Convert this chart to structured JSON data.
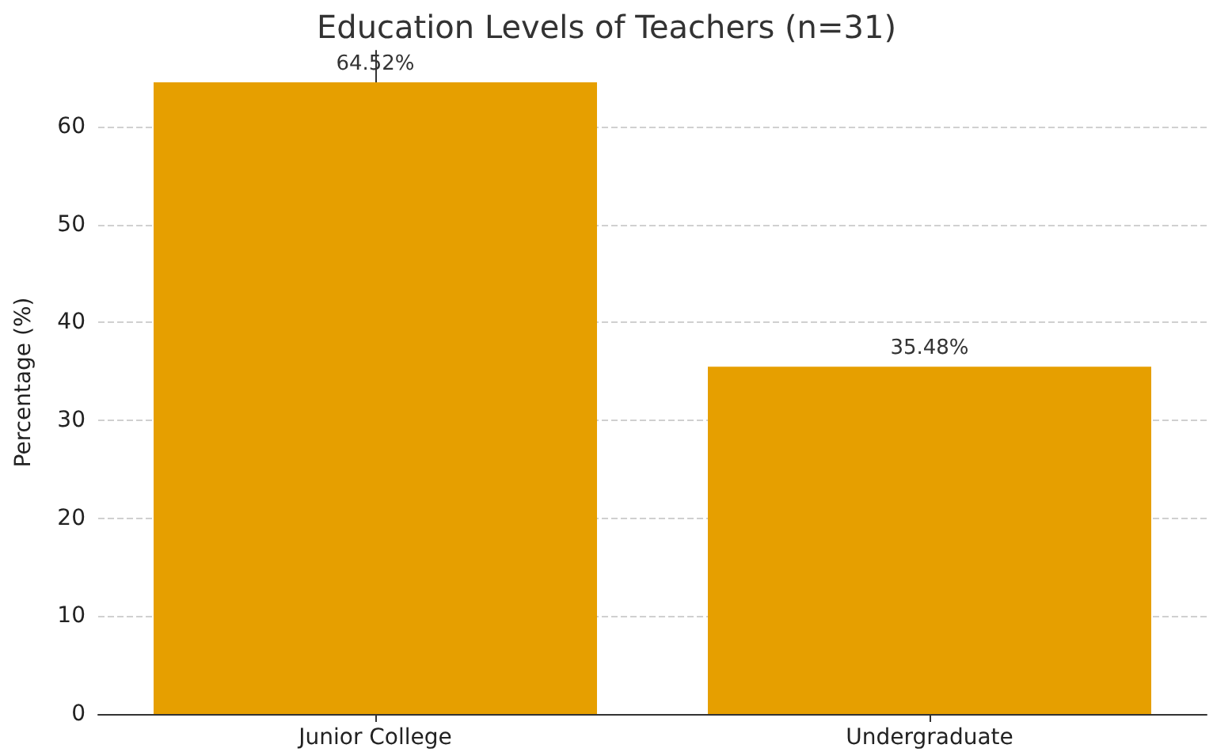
{
  "chart_data": {
    "type": "bar",
    "title": "Education Levels of Teachers (n=31)",
    "ylabel": "Percentage (%)",
    "categories": [
      "Junior College",
      "Undergraduate"
    ],
    "values": [
      64.52,
      35.48
    ],
    "value_labels": [
      "64.52%",
      "35.48%"
    ],
    "color": "#e69f00",
    "ylim": [
      0,
      67.75
    ],
    "yticks": [
      0,
      10,
      20,
      30,
      40,
      50,
      60
    ],
    "grid": true
  }
}
